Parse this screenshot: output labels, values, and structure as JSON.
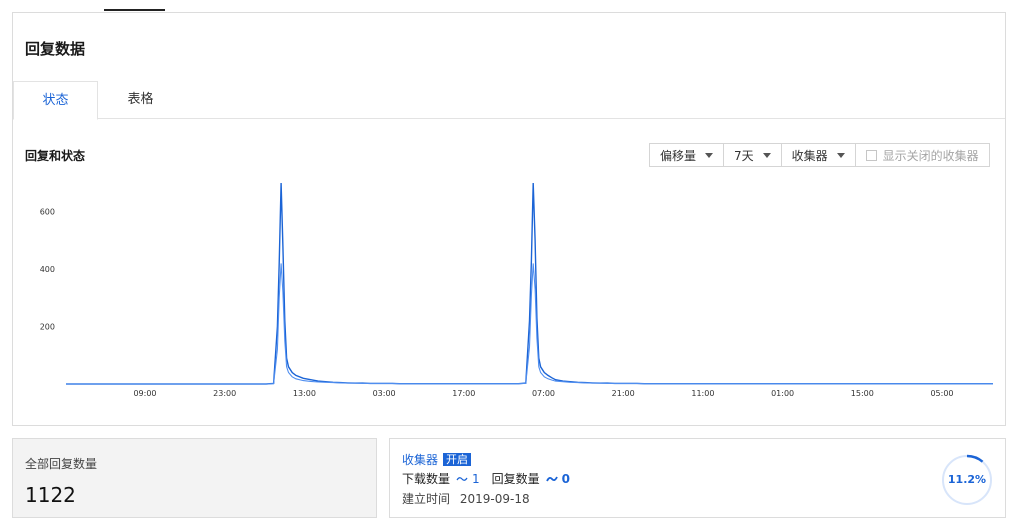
{
  "panel": {
    "title": "回复数据",
    "tabs": [
      {
        "label": "状态"
      },
      {
        "label": "表格"
      }
    ],
    "section_title": "回复和状态",
    "filters": {
      "offset": "偏移量",
      "range": "7天",
      "collector": "收集器",
      "show_closed": "显示关闭的收集器"
    }
  },
  "chart_data": {
    "type": "line",
    "title": "",
    "xlabel": "",
    "ylabel": "",
    "ylim": [
      0,
      700
    ],
    "y_ticks": [
      200,
      400,
      600
    ],
    "x_ticks": [
      "09:00",
      "23:00",
      "13:00",
      "03:00",
      "17:00",
      "07:00",
      "21:00",
      "11:00",
      "01:00",
      "15:00",
      "05:00"
    ],
    "x": [
      0,
      4,
      8,
      12,
      16,
      20,
      24,
      28,
      32,
      36,
      40,
      44,
      48,
      52,
      56,
      60,
      64,
      68,
      72,
      76,
      80,
      84,
      88,
      92,
      96,
      100,
      104,
      108,
      112,
      114,
      115,
      116,
      117,
      118,
      119,
      120,
      122,
      124,
      128,
      132,
      136,
      140,
      144,
      148,
      152,
      156,
      160,
      164,
      168,
      172,
      176,
      180,
      184,
      188,
      192,
      196,
      200,
      204,
      208,
      212,
      216,
      220,
      224,
      228,
      232,
      236,
      240,
      244,
      248,
      250,
      251,
      252,
      253,
      254,
      255,
      256,
      258,
      260,
      262,
      264,
      268,
      272,
      276,
      280,
      284,
      288,
      292,
      296,
      300,
      304,
      308,
      312,
      316,
      320,
      324,
      328,
      332,
      336,
      340,
      344,
      348,
      352,
      356,
      360,
      364,
      368,
      372,
      376,
      380,
      384,
      388,
      392,
      396,
      400,
      404,
      408,
      412,
      416,
      420,
      424,
      428,
      432,
      436,
      440,
      444,
      448,
      452,
      456,
      460,
      464,
      468,
      472,
      476,
      480,
      484,
      488,
      492,
      496,
      500
    ],
    "series": [
      {
        "values": [
          0,
          0,
          0,
          0,
          0,
          0,
          0,
          0,
          0,
          0,
          0,
          0,
          0,
          0,
          0,
          0,
          0,
          0,
          0,
          0,
          0,
          0,
          0,
          0,
          0,
          0,
          0,
          0,
          2,
          200,
          420,
          700,
          480,
          220,
          90,
          60,
          40,
          30,
          20,
          15,
          10,
          8,
          6,
          5,
          4,
          3,
          3,
          2,
          2,
          2,
          2,
          1,
          1,
          1,
          1,
          1,
          1,
          1,
          1,
          1,
          1,
          1,
          1,
          1,
          1,
          1,
          1,
          1,
          3,
          220,
          430,
          700,
          500,
          230,
          90,
          60,
          40,
          30,
          22,
          15,
          10,
          8,
          6,
          5,
          4,
          3,
          3,
          2,
          2,
          2,
          2,
          1,
          1,
          1,
          1,
          1,
          1,
          1,
          1,
          1,
          1,
          1,
          1,
          1,
          1,
          1,
          1,
          1,
          1,
          1,
          1,
          1,
          1,
          1,
          1,
          1,
          1,
          1,
          1,
          1,
          1,
          1,
          1,
          1,
          1,
          1,
          1,
          1,
          1,
          1,
          1,
          1,
          1,
          1,
          1,
          1,
          1,
          1,
          1
        ]
      },
      {
        "values": [
          0,
          0,
          0,
          0,
          0,
          0,
          0,
          0,
          0,
          0,
          0,
          0,
          0,
          0,
          0,
          0,
          0,
          0,
          0,
          0,
          0,
          0,
          0,
          0,
          0,
          0,
          0,
          0,
          1,
          120,
          300,
          420,
          320,
          150,
          60,
          40,
          25,
          18,
          12,
          9,
          7,
          6,
          5,
          4,
          3,
          3,
          2,
          2,
          2,
          2,
          2,
          1,
          1,
          1,
          1,
          1,
          1,
          1,
          1,
          1,
          1,
          1,
          1,
          1,
          1,
          1,
          1,
          1,
          2,
          130,
          310,
          420,
          330,
          160,
          60,
          40,
          25,
          18,
          14,
          10,
          8,
          6,
          5,
          4,
          3,
          3,
          2,
          2,
          2,
          2,
          2,
          1,
          1,
          1,
          1,
          1,
          1,
          1,
          1,
          1,
          1,
          1,
          1,
          1,
          1,
          1,
          1,
          1,
          1,
          1,
          1,
          1,
          1,
          1,
          1,
          1,
          1,
          1,
          1,
          1,
          1,
          1,
          1,
          1,
          1,
          1,
          1,
          1,
          1,
          1,
          1,
          1,
          1,
          1,
          1,
          1,
          1,
          1,
          1
        ]
      }
    ],
    "colors": [
      "#1b64d6",
      "#4f8ef0"
    ]
  },
  "summary": {
    "total_label": "全部回复数量",
    "total_value": "1122"
  },
  "collector": {
    "name": "收集器",
    "status": "开启",
    "download_label": "下载数量",
    "download_value": "1",
    "reply_label": "回复数量",
    "reply_value": "0",
    "created_label": "建立时间",
    "created_value": "2019-09-18",
    "ratio_text": "11.2%",
    "ratio": 0.112
  }
}
